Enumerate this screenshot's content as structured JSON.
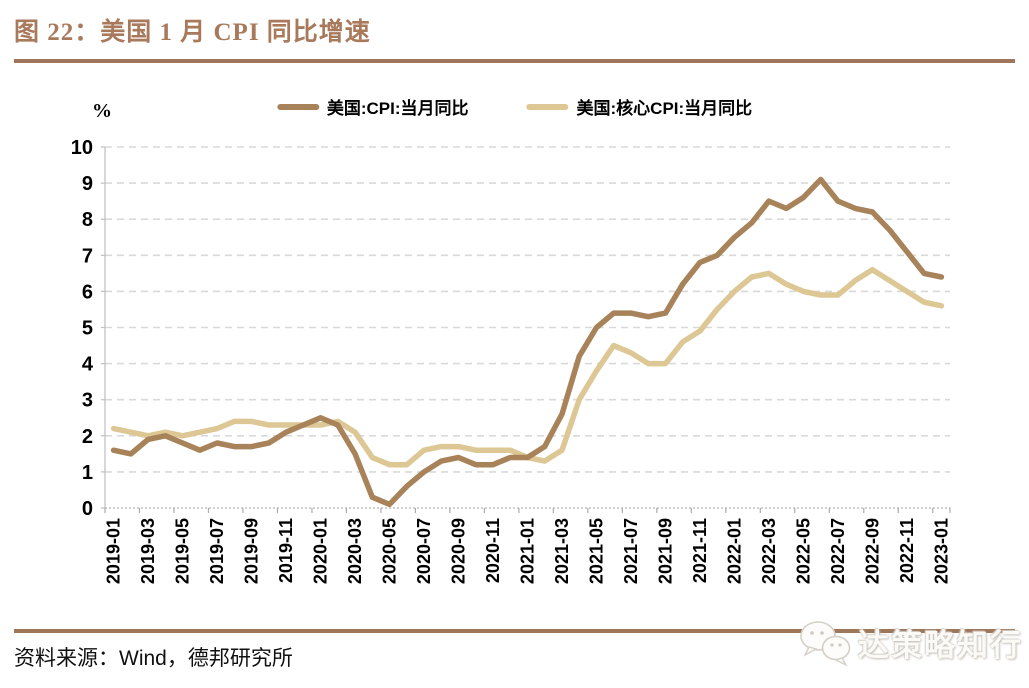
{
  "title": "图 22：美国 1 月 CPI 同比增速",
  "source": "资料来源：Wind，德邦研究所",
  "watermark": {
    "label": "达策略知行",
    "icon": "wechat-icon"
  },
  "colors": {
    "title": "#A9795B",
    "rule": "#9E765A",
    "cpi_line": "#A8835A",
    "core_cpi_line": "#DCC795",
    "grid": "#D9D9D9",
    "axis": "#BFBFBF"
  },
  "chart_data": {
    "type": "line",
    "title": "图 22：美国 1 月 CPI 同比增速",
    "unit_label": "%",
    "xlabel": "",
    "ylabel": "%",
    "ylim": [
      0,
      10
    ],
    "yticks": [
      0,
      1,
      2,
      3,
      4,
      5,
      6,
      7,
      8,
      9,
      10
    ],
    "grid": "dashed-horizontal",
    "legend_position": "top",
    "x": [
      "2019-01",
      "2019-02",
      "2019-03",
      "2019-04",
      "2019-05",
      "2019-06",
      "2019-07",
      "2019-08",
      "2019-09",
      "2019-10",
      "2019-11",
      "2019-12",
      "2020-01",
      "2020-02",
      "2020-03",
      "2020-04",
      "2020-05",
      "2020-06",
      "2020-07",
      "2020-08",
      "2020-09",
      "2020-10",
      "2020-11",
      "2020-12",
      "2021-01",
      "2021-02",
      "2021-03",
      "2021-04",
      "2021-05",
      "2021-06",
      "2021-07",
      "2021-08",
      "2021-09",
      "2021-10",
      "2021-11",
      "2021-12",
      "2022-01",
      "2022-02",
      "2022-03",
      "2022-04",
      "2022-05",
      "2022-06",
      "2022-07",
      "2022-08",
      "2022-09",
      "2022-10",
      "2022-11",
      "2022-12",
      "2023-01"
    ],
    "xtick_labels": [
      "2019-01",
      "2019-03",
      "2019-05",
      "2019-07",
      "2019-09",
      "2019-11",
      "2020-01",
      "2020-03",
      "2020-05",
      "2020-07",
      "2020-09",
      "2020-11",
      "2021-01",
      "2021-03",
      "2021-05",
      "2021-07",
      "2021-09",
      "2021-11",
      "2022-01",
      "2022-03",
      "2022-05",
      "2022-07",
      "2022-09",
      "2022-11",
      "2023-01"
    ],
    "series": [
      {
        "name": "美国:CPI:当月同比",
        "color": "#A8835A",
        "values": [
          1.6,
          1.5,
          1.9,
          2.0,
          1.8,
          1.6,
          1.8,
          1.7,
          1.7,
          1.8,
          2.1,
          2.3,
          2.5,
          2.3,
          1.5,
          0.3,
          0.1,
          0.6,
          1.0,
          1.3,
          1.4,
          1.2,
          1.2,
          1.4,
          1.4,
          1.7,
          2.6,
          4.2,
          5.0,
          5.4,
          5.4,
          5.3,
          5.4,
          6.2,
          6.8,
          7.0,
          7.5,
          7.9,
          8.5,
          8.3,
          8.6,
          9.1,
          8.5,
          8.3,
          8.2,
          7.7,
          7.1,
          6.5,
          6.4
        ]
      },
      {
        "name": "美国:核心CPI:当月同比",
        "color": "#DCC795",
        "values": [
          2.2,
          2.1,
          2.0,
          2.1,
          2.0,
          2.1,
          2.2,
          2.4,
          2.4,
          2.3,
          2.3,
          2.3,
          2.3,
          2.4,
          2.1,
          1.4,
          1.2,
          1.2,
          1.6,
          1.7,
          1.7,
          1.6,
          1.6,
          1.6,
          1.4,
          1.3,
          1.6,
          3.0,
          3.8,
          4.5,
          4.3,
          4.0,
          4.0,
          4.6,
          4.9,
          5.5,
          6.0,
          6.4,
          6.5,
          6.2,
          6.0,
          5.9,
          5.9,
          6.3,
          6.6,
          6.3,
          6.0,
          5.7,
          5.6
        ]
      }
    ]
  }
}
